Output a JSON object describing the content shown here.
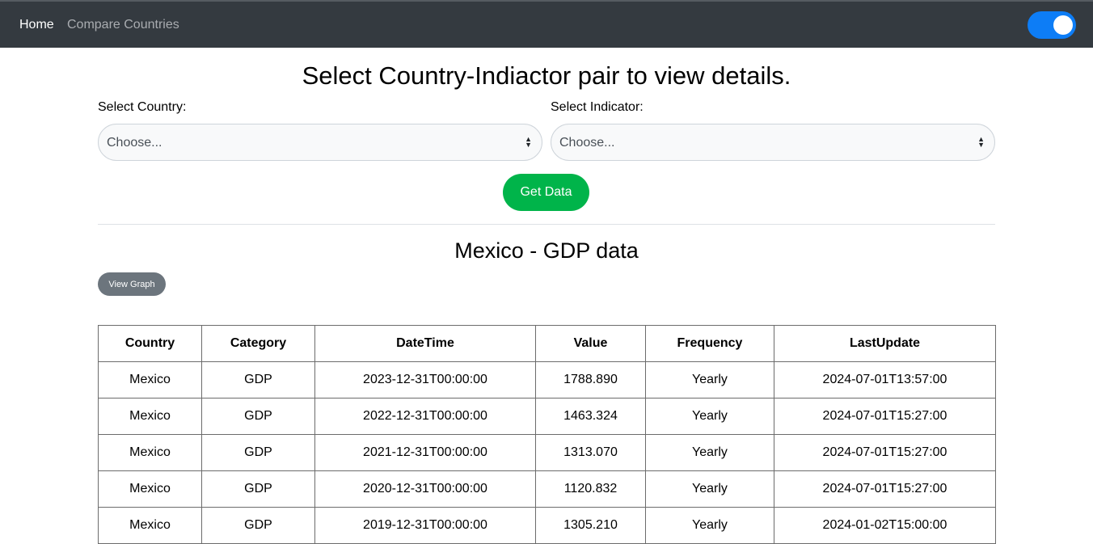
{
  "navbar": {
    "home_label": "Home",
    "compare_label": "Compare Countries",
    "theme_toggle_on": true
  },
  "page": {
    "title": "Select Country-Indiactor pair to view details."
  },
  "form": {
    "country_label": "Select Country:",
    "country_value": "Choose...",
    "indicator_label": "Select Indicator:",
    "indicator_value": "Choose...",
    "get_data_label": "Get Data"
  },
  "results": {
    "title": "Mexico - GDP data",
    "view_graph_label": "View Graph",
    "columns": [
      "Country",
      "Category",
      "DateTime",
      "Value",
      "Frequency",
      "LastUpdate"
    ],
    "rows": [
      [
        "Mexico",
        "GDP",
        "2023-12-31T00:00:00",
        "1788.890",
        "Yearly",
        "2024-07-01T13:57:00"
      ],
      [
        "Mexico",
        "GDP",
        "2022-12-31T00:00:00",
        "1463.324",
        "Yearly",
        "2024-07-01T15:27:00"
      ],
      [
        "Mexico",
        "GDP",
        "2021-12-31T00:00:00",
        "1313.070",
        "Yearly",
        "2024-07-01T15:27:00"
      ],
      [
        "Mexico",
        "GDP",
        "2020-12-31T00:00:00",
        "1120.832",
        "Yearly",
        "2024-07-01T15:27:00"
      ],
      [
        "Mexico",
        "GDP",
        "2019-12-31T00:00:00",
        "1305.210",
        "Yearly",
        "2024-01-02T15:00:00"
      ]
    ]
  },
  "colors": {
    "navbar_bg": "#343a40",
    "toggle_on": "#0d7df6",
    "get_data_button": "#00b44a",
    "view_graph_button": "#6c757d"
  }
}
